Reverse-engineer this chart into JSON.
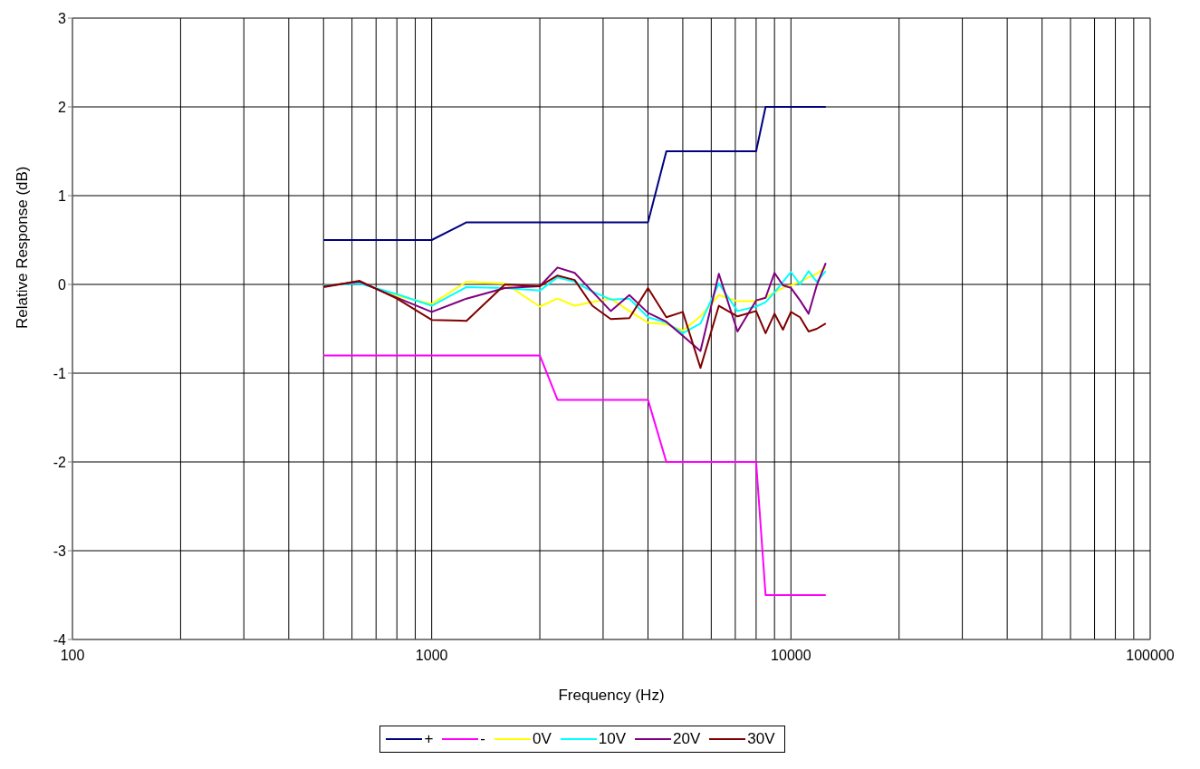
{
  "chart_data": {
    "type": "line",
    "xlabel": "Frequency (Hz)",
    "ylabel": "Relative Response (dB)",
    "log": "x",
    "xlim": [
      100,
      100000
    ],
    "ylim": [
      -4,
      3
    ],
    "xticks": [
      100,
      {
        "value": 200,
        "label": null
      },
      {
        "value": 300,
        "label": null
      },
      {
        "value": 400,
        "label": null
      },
      {
        "value": 500,
        "label": null
      },
      {
        "value": 600,
        "label": null
      },
      {
        "value": 700,
        "label": null
      },
      {
        "value": 800,
        "label": null
      },
      {
        "value": 900,
        "label": null
      },
      1000,
      {
        "value": 2000,
        "label": null
      },
      {
        "value": 3000,
        "label": null
      },
      {
        "value": 4000,
        "label": null
      },
      {
        "value": 5000,
        "label": null
      },
      {
        "value": 6000,
        "label": null
      },
      {
        "value": 7000,
        "label": null
      },
      {
        "value": 8000,
        "label": null
      },
      {
        "value": 9000,
        "label": null
      },
      10000,
      {
        "value": 20000,
        "label": null
      },
      {
        "value": 30000,
        "label": null
      },
      {
        "value": 40000,
        "label": null
      },
      {
        "value": 50000,
        "label": null
      },
      {
        "value": 60000,
        "label": null
      },
      {
        "value": 70000,
        "label": null
      },
      {
        "value": 80000,
        "label": null
      },
      {
        "value": 90000,
        "label": null
      },
      100000
    ],
    "yticks": [
      -4,
      -3,
      -2,
      -1,
      0,
      1,
      2,
      3
    ],
    "grid": true,
    "legend": "bottom",
    "marker": "none",
    "line_style": "solid",
    "x": [
      500,
      630,
      800,
      1000,
      1250,
      1600,
      2000,
      2240,
      2500,
      2800,
      3150,
      3550,
      4000,
      4500,
      5000,
      5600,
      6300,
      7100,
      8000,
      8500,
      9000,
      9500,
      10000,
      10600,
      11200,
      11800,
      12500
    ],
    "series": [
      {
        "name": "+",
        "color": "#000080",
        "x": [
          500,
          1000,
          1250,
          4000,
          4500,
          8000,
          8500,
          12500
        ],
        "values": [
          0.5,
          0.5,
          0.7,
          0.7,
          1.5,
          1.5,
          2,
          2
        ]
      },
      {
        "name": "-",
        "color": "#ff00ff",
        "x": [
          500,
          2000,
          2240,
          4000,
          4500,
          8000,
          8500,
          12500
        ],
        "values": [
          -0.8,
          -0.8,
          -1.3,
          -1.3,
          -2,
          -2,
          -3.5,
          -3.5
        ]
      },
      {
        "name": "0V",
        "color": "#ffff00",
        "values": [
          -0.01,
          0.02,
          -0.13,
          -0.22,
          0.03,
          0.01,
          -0.25,
          -0.16,
          -0.24,
          -0.2,
          -0.16,
          -0.3,
          -0.43,
          -0.45,
          -0.52,
          -0.36,
          -0.12,
          -0.19,
          -0.19,
          -0.15,
          -0.09,
          -0.04,
          -0.01,
          0.03,
          0.08,
          0.12,
          0.19
        ]
      },
      {
        "name": "10V",
        "color": "#00ffff",
        "values": [
          -0.01,
          0.01,
          -0.11,
          -0.24,
          -0.03,
          -0.04,
          -0.07,
          0.08,
          0.03,
          -0.08,
          -0.17,
          -0.16,
          -0.37,
          -0.43,
          -0.55,
          -0.44,
          0.01,
          -0.3,
          -0.25,
          -0.2,
          -0.09,
          0.03,
          0.14,
          0,
          0.15,
          0.03,
          0.15
        ]
      },
      {
        "name": "20V",
        "color": "#800080",
        "values": [
          -0.02,
          0.03,
          -0.15,
          -0.31,
          -0.16,
          -0.04,
          -0.02,
          0.19,
          0.13,
          -0.08,
          -0.3,
          -0.12,
          -0.32,
          -0.42,
          -0.58,
          -0.75,
          0.12,
          -0.53,
          -0.18,
          -0.15,
          0.13,
          -0.01,
          -0.04,
          -0.18,
          -0.33,
          -0.01,
          0.24
        ]
      },
      {
        "name": "30V",
        "color": "#800000",
        "values": [
          -0.03,
          0.04,
          -0.16,
          -0.4,
          -0.41,
          0,
          -0.02,
          0.1,
          0.05,
          -0.24,
          -0.39,
          -0.38,
          -0.04,
          -0.37,
          -0.31,
          -0.94,
          -0.24,
          -0.36,
          -0.3,
          -0.55,
          -0.33,
          -0.51,
          -0.31,
          -0.37,
          -0.53,
          -0.5,
          -0.44
        ]
      }
    ]
  }
}
